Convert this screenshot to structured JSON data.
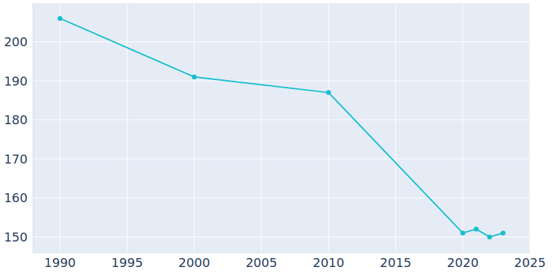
{
  "chart_data": {
    "type": "line",
    "x": [
      1990,
      2000,
      2010,
      2020,
      2021,
      2022,
      2023
    ],
    "values": [
      206,
      191,
      187,
      151,
      152,
      150,
      151
    ],
    "color": "#17becf",
    "xlim": [
      1988,
      2025
    ],
    "xticks": [
      1990,
      1995,
      2000,
      2005,
      2010,
      2015,
      2020,
      2025
    ],
    "ylim": [
      146,
      210
    ],
    "yticks": [
      150,
      160,
      170,
      180,
      190,
      200
    ],
    "grid": true,
    "marker": "circle"
  }
}
